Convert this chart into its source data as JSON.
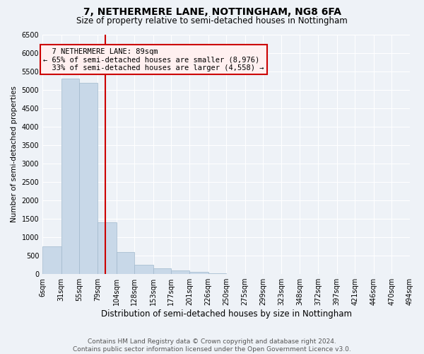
{
  "title": "7, NETHERMERE LANE, NOTTINGHAM, NG8 6FA",
  "subtitle": "Size of property relative to semi-detached houses in Nottingham",
  "xlabel": "Distribution of semi-detached houses by size in Nottingham",
  "ylabel": "Number of semi-detached properties",
  "footnote": "Contains HM Land Registry data © Crown copyright and database right 2024.\nContains public sector information licensed under the Open Government Licence v3.0.",
  "property_size": 89,
  "property_label": "7 NETHERMERE LANE: 89sqm",
  "pct_smaller": 65,
  "pct_larger": 33,
  "n_smaller": 8976,
  "n_larger": 4558,
  "bin_edges": [
    6,
    31,
    55,
    79,
    104,
    128,
    153,
    177,
    201,
    226,
    250,
    275,
    299,
    323,
    348,
    372,
    397,
    421,
    446,
    470,
    494
  ],
  "bar_heights": [
    750,
    5300,
    5200,
    1400,
    600,
    250,
    150,
    100,
    50,
    20,
    10,
    5,
    2,
    1,
    0,
    0,
    0,
    0,
    0,
    0
  ],
  "bar_color": "#c8d8e8",
  "bar_edge_color": "#a0b8cc",
  "vline_color": "#cc0000",
  "ylim": [
    0,
    6500
  ],
  "background_color": "#eef2f7",
  "grid_color": "#ffffff",
  "title_fontsize": 10,
  "subtitle_fontsize": 8.5,
  "xlabel_fontsize": 8.5,
  "ylabel_fontsize": 7.5,
  "tick_fontsize": 7,
  "footnote_fontsize": 6.5,
  "ann_fontsize": 7.5
}
